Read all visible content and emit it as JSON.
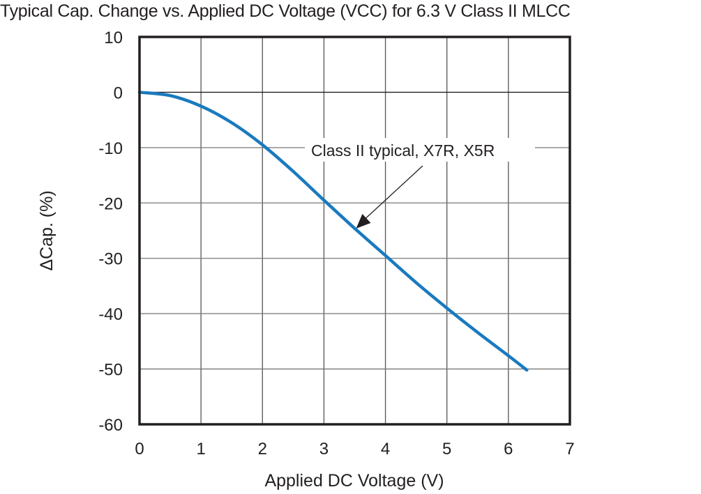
{
  "chart_data": {
    "type": "line",
    "title": "Typical Cap. Change vs. Applied DC Voltage (VCC) for 6.3 V Class II MLCC",
    "xlabel": "Applied DC Voltage (V)",
    "ylabel": "ΔCap. (%)",
    "xlim": [
      0,
      7
    ],
    "ylim": [
      -60,
      10
    ],
    "xticks": [
      "0",
      "1",
      "2",
      "3",
      "4",
      "5",
      "6",
      "7"
    ],
    "yticks": [
      "10",
      "0",
      "-10",
      "-20",
      "-30",
      "-40",
      "-50",
      "-60"
    ],
    "grid": true,
    "series": [
      {
        "name": "Class II typical, X7R, X5R",
        "color": "#1a7abf",
        "x": [
          0,
          0.5,
          1,
          1.5,
          2,
          2.5,
          3,
          3.5,
          4,
          4.5,
          5,
          5.5,
          6,
          6.3
        ],
        "y": [
          0,
          -0.6,
          -2.5,
          -5.5,
          -9.5,
          -14.3,
          -19.5,
          -24.6,
          -29.5,
          -34.4,
          -39,
          -43.4,
          -47.6,
          -50.2
        ]
      }
    ],
    "annotations": [
      {
        "text": "Class II typical, X7R, X5R",
        "arrow_to": [
          3.5,
          -24.5
        ]
      }
    ]
  }
}
